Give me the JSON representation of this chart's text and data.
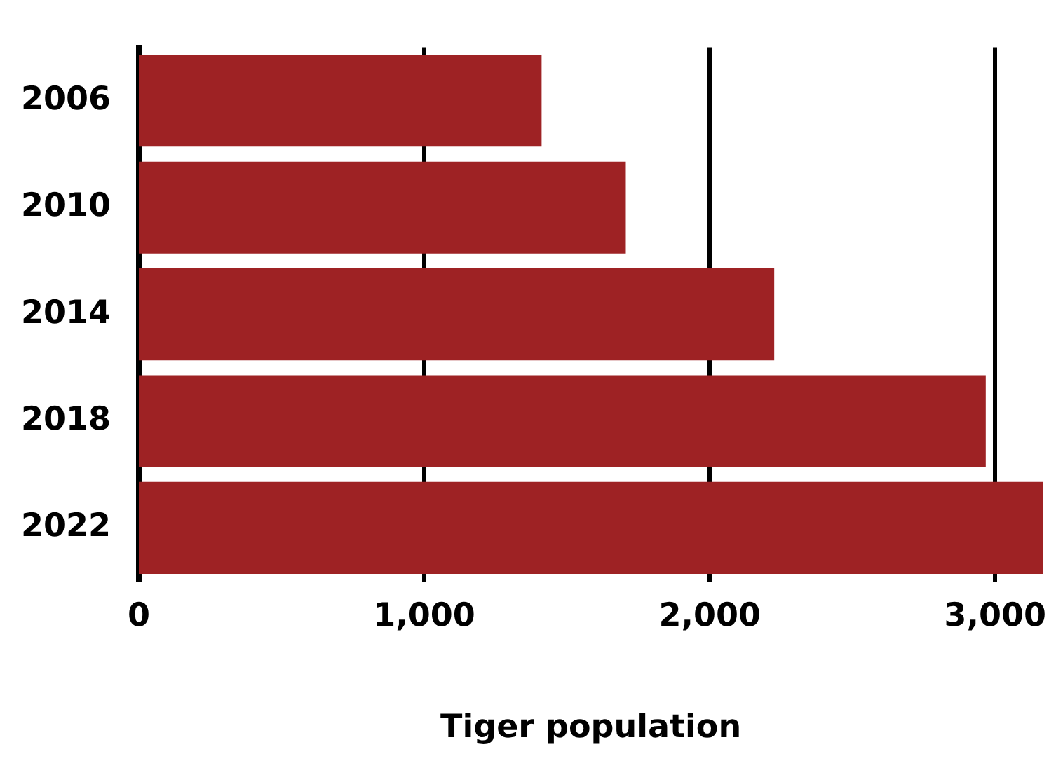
{
  "chart_data": {
    "type": "bar",
    "orientation": "horizontal",
    "xlabel": "Tiger population",
    "categories": [
      "2006",
      "2010",
      "2014",
      "2018",
      "2022"
    ],
    "values": [
      1411,
      1706,
      2226,
      2967,
      3167
    ],
    "color": "#9e2224",
    "xlim": [
      0,
      3167
    ],
    "xticks": [
      {
        "value": 0,
        "label": "0"
      },
      {
        "value": 1000,
        "label": "1,000"
      },
      {
        "value": 2000,
        "label": "2,000"
      },
      {
        "value": 3000,
        "label": "3,000"
      }
    ],
    "grid": "x"
  }
}
